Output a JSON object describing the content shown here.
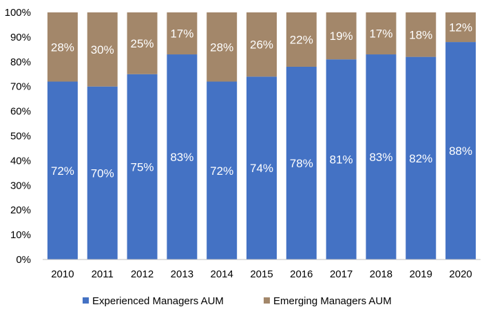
{
  "chart_data": {
    "type": "bar",
    "stacked": true,
    "categories": [
      "2010",
      "2011",
      "2012",
      "2013",
      "2014",
      "2015",
      "2016",
      "2017",
      "2018",
      "2019",
      "2020"
    ],
    "series": [
      {
        "name": "Experienced Managers AUM",
        "color": "#4472c4",
        "values": [
          72,
          70,
          75,
          83,
          72,
          74,
          78,
          81,
          83,
          82,
          88
        ],
        "labels": [
          "72%",
          "70%",
          "75%",
          "83%",
          "72%",
          "74%",
          "78%",
          "81%",
          "83%",
          "82%",
          "88%"
        ]
      },
      {
        "name": "Emerging Managers AUM",
        "color": "#a3876a",
        "values": [
          28,
          30,
          25,
          17,
          28,
          26,
          22,
          19,
          17,
          18,
          12
        ],
        "labels": [
          "28%",
          "30%",
          "25%",
          "17%",
          "28%",
          "26%",
          "22%",
          "19%",
          "17%",
          "18%",
          "12%"
        ]
      }
    ],
    "yticks": [
      "0%",
      "10%",
      "20%",
      "30%",
      "40%",
      "50%",
      "60%",
      "70%",
      "80%",
      "90%",
      "100%"
    ],
    "ylim": [
      0,
      100
    ],
    "grid": false,
    "legend_position": "bottom"
  }
}
